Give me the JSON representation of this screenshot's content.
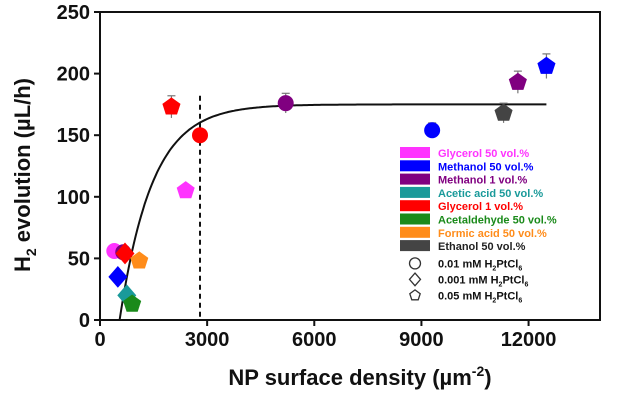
{
  "chart_data": {
    "type": "scatter",
    "ylabel_parts": {
      "main": "H",
      "sub": "2",
      "rest": " evolution (µL/h)"
    },
    "xlabel_parts": {
      "main": "NP surface density (µm",
      "sup": "-2",
      "rest": ")"
    },
    "xlim": [
      0,
      14000
    ],
    "ylim": [
      0,
      250
    ],
    "x_ticks": [
      0,
      3000,
      6000,
      9000,
      12000
    ],
    "y_ticks": [
      0,
      50,
      100,
      150,
      200,
      250
    ],
    "reference_line_x": 2800,
    "fit_curve": {
      "model": "exponential_saturation",
      "ymax": 175,
      "x0": 550,
      "k": 0.0011
    },
    "series": [
      {
        "name": "Glycerol 50 vol.%",
        "color": "#ff33ff",
        "points": [
          {
            "x": 2400,
            "y": 105,
            "marker": "pentagon",
            "err": 0
          },
          {
            "x": 400,
            "y": 56,
            "marker": "circle",
            "err": 0
          }
        ]
      },
      {
        "name": "Methanol 50 vol.%",
        "color": "#0000ff",
        "points": [
          {
            "x": 12500,
            "y": 206,
            "marker": "pentagon",
            "err": 10
          },
          {
            "x": 9300,
            "y": 154,
            "marker": "circle",
            "err": 6
          },
          {
            "x": 500,
            "y": 35,
            "marker": "diamond",
            "err": 0
          }
        ]
      },
      {
        "name": "Methanol 1 vol.%",
        "color": "#800080",
        "points": [
          {
            "x": 11700,
            "y": 193,
            "marker": "pentagon",
            "err": 9
          },
          {
            "x": 5200,
            "y": 176,
            "marker": "circle",
            "err": 8
          },
          {
            "x": 650,
            "y": 55,
            "marker": "circle",
            "err": 0
          }
        ]
      },
      {
        "name": "Acetic acid 50 vol.%",
        "color": "#1a9a9a",
        "points": [
          {
            "x": 750,
            "y": 20,
            "marker": "diamond",
            "err": 0
          }
        ]
      },
      {
        "name": "Glycerol 1 vol.%",
        "color": "#ff0000",
        "points": [
          {
            "x": 2000,
            "y": 173,
            "marker": "pentagon",
            "err": 9
          },
          {
            "x": 2800,
            "y": 150,
            "marker": "circle",
            "err": 0
          },
          {
            "x": 700,
            "y": 54,
            "marker": "diamond",
            "err": 0
          }
        ]
      },
      {
        "name": "Acetaldehyde 50 vol.%",
        "color": "#1a8a1a",
        "points": [
          {
            "x": 900,
            "y": 13,
            "marker": "pentagon",
            "err": 0
          }
        ]
      },
      {
        "name": "Formic acid 50 vol.%",
        "color": "#ff8c1a",
        "points": [
          {
            "x": 1100,
            "y": 48,
            "marker": "pentagon",
            "err": 0
          }
        ]
      },
      {
        "name": "Ethanol 50 vol.%",
        "color": "#444444",
        "points": [
          {
            "x": 11300,
            "y": 168,
            "marker": "pentagon",
            "err": 8
          }
        ]
      }
    ],
    "marker_legend": [
      {
        "label_parts": {
          "main": "0.01 mM H",
          "sub1": "2",
          "mid": "PtCl",
          "sub2": "6"
        },
        "marker": "circle"
      },
      {
        "label_parts": {
          "main": "0.001 mM H",
          "sub1": "2",
          "mid": "PtCl",
          "sub2": "6"
        },
        "marker": "diamond"
      },
      {
        "label_parts": {
          "main": "0.05 mM H",
          "sub1": "2",
          "mid": "PtCl",
          "sub2": "6"
        },
        "marker": "pentagon"
      }
    ],
    "legend_position": "right"
  }
}
